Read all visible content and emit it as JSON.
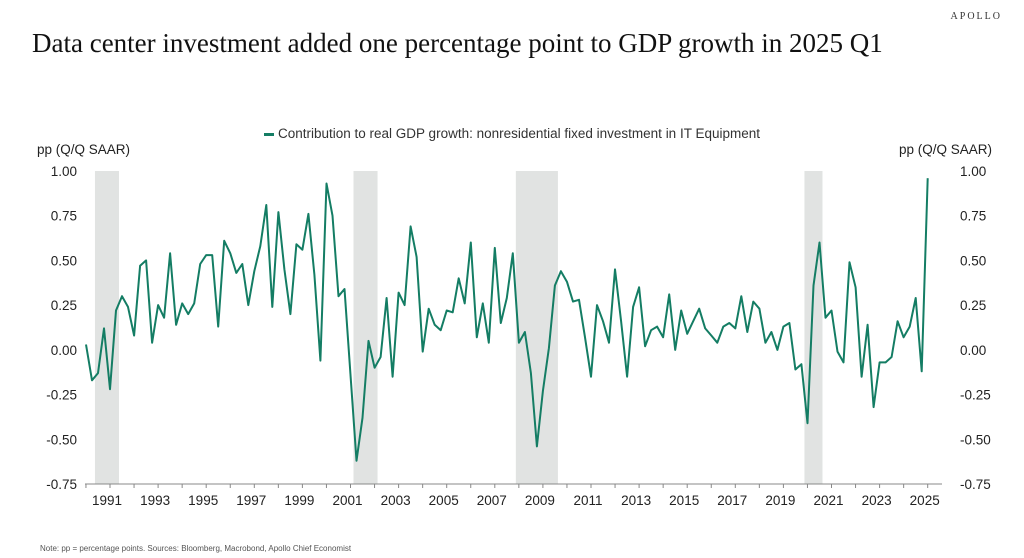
{
  "logo": "APOLLO",
  "chart_data": {
    "type": "line",
    "title": "Data center investment added one percentage point to GDP growth in 2025 Q1",
    "legend": "Contribution to real GDP growth: nonresidential fixed investment in IT Equipment",
    "legend_placement": "top-center",
    "ylabel_left": "pp (Q/Q SAAR)",
    "ylabel_right": "pp (Q/Q SAAR)",
    "ylim": [
      -0.75,
      1.0
    ],
    "yticks": [
      "1.00",
      "0.75",
      "0.50",
      "0.25",
      "0.00",
      "-0.25",
      "-0.50",
      "-0.75"
    ],
    "xticks": [
      "1991",
      "1993",
      "1995",
      "1997",
      "1999",
      "2001",
      "2003",
      "2005",
      "2007",
      "2009",
      "2011",
      "2013",
      "2015",
      "2017",
      "2019",
      "2021",
      "2023",
      "2025"
    ],
    "grid": false,
    "series_color": "#147d64",
    "recession_color": "#e1e3e2",
    "start_quarter": "1990Q1",
    "end_quarter": "2025Q1",
    "frequency": "quarterly",
    "recessions": [
      [
        "1990Q3",
        "1991Q1"
      ],
      [
        "2001Q2",
        "2001Q4"
      ],
      [
        "2008Q1",
        "2009Q2"
      ],
      [
        "2020Q1",
        "2020Q2"
      ]
    ],
    "series": [
      {
        "values": [
          0.03,
          -0.17,
          -0.13,
          0.12,
          -0.22,
          0.22,
          0.3,
          0.24,
          0.08,
          0.47,
          0.5,
          0.04,
          0.25,
          0.18,
          0.54,
          0.14,
          0.26,
          0.2,
          0.26,
          0.48,
          0.53,
          0.53,
          0.13,
          0.61,
          0.54,
          0.43,
          0.48,
          0.25,
          0.44,
          0.58,
          0.81,
          0.24,
          0.77,
          0.45,
          0.2,
          0.59,
          0.56,
          0.76,
          0.42,
          -0.06,
          0.93,
          0.75,
          0.3,
          0.34,
          -0.14,
          -0.62,
          -0.38,
          0.05,
          -0.1,
          -0.04,
          0.29,
          -0.15,
          0.32,
          0.25,
          0.69,
          0.52,
          -0.01,
          0.23,
          0.14,
          0.11,
          0.22,
          0.21,
          0.4,
          0.26,
          0.6,
          0.07,
          0.26,
          0.04,
          0.57,
          0.15,
          0.29,
          0.54,
          0.04,
          0.1,
          -0.13,
          -0.54,
          -0.23,
          0.01,
          0.36,
          0.44,
          0.38,
          0.27,
          0.28,
          0.07,
          -0.15,
          0.25,
          0.16,
          0.04,
          0.45,
          0.16,
          -0.15,
          0.24,
          0.35,
          0.02,
          0.11,
          0.13,
          0.07,
          0.31,
          0.0,
          0.22,
          0.09,
          0.16,
          0.23,
          0.12,
          0.08,
          0.04,
          0.13,
          0.15,
          0.12,
          0.3,
          0.1,
          0.27,
          0.23,
          0.04,
          0.1,
          0.0,
          0.13,
          0.15,
          -0.11,
          -0.08,
          -0.41,
          0.36,
          0.6,
          0.18,
          0.22,
          -0.01,
          -0.07,
          0.49,
          0.35,
          -0.15,
          0.14,
          -0.32,
          -0.07,
          -0.07,
          -0.04,
          0.16,
          0.07,
          0.13,
          0.29,
          -0.12,
          0.96
        ]
      }
    ]
  },
  "note": "Note: pp = percentage points. Sources: Bloomberg, Macrobond, Apollo Chief Economist"
}
